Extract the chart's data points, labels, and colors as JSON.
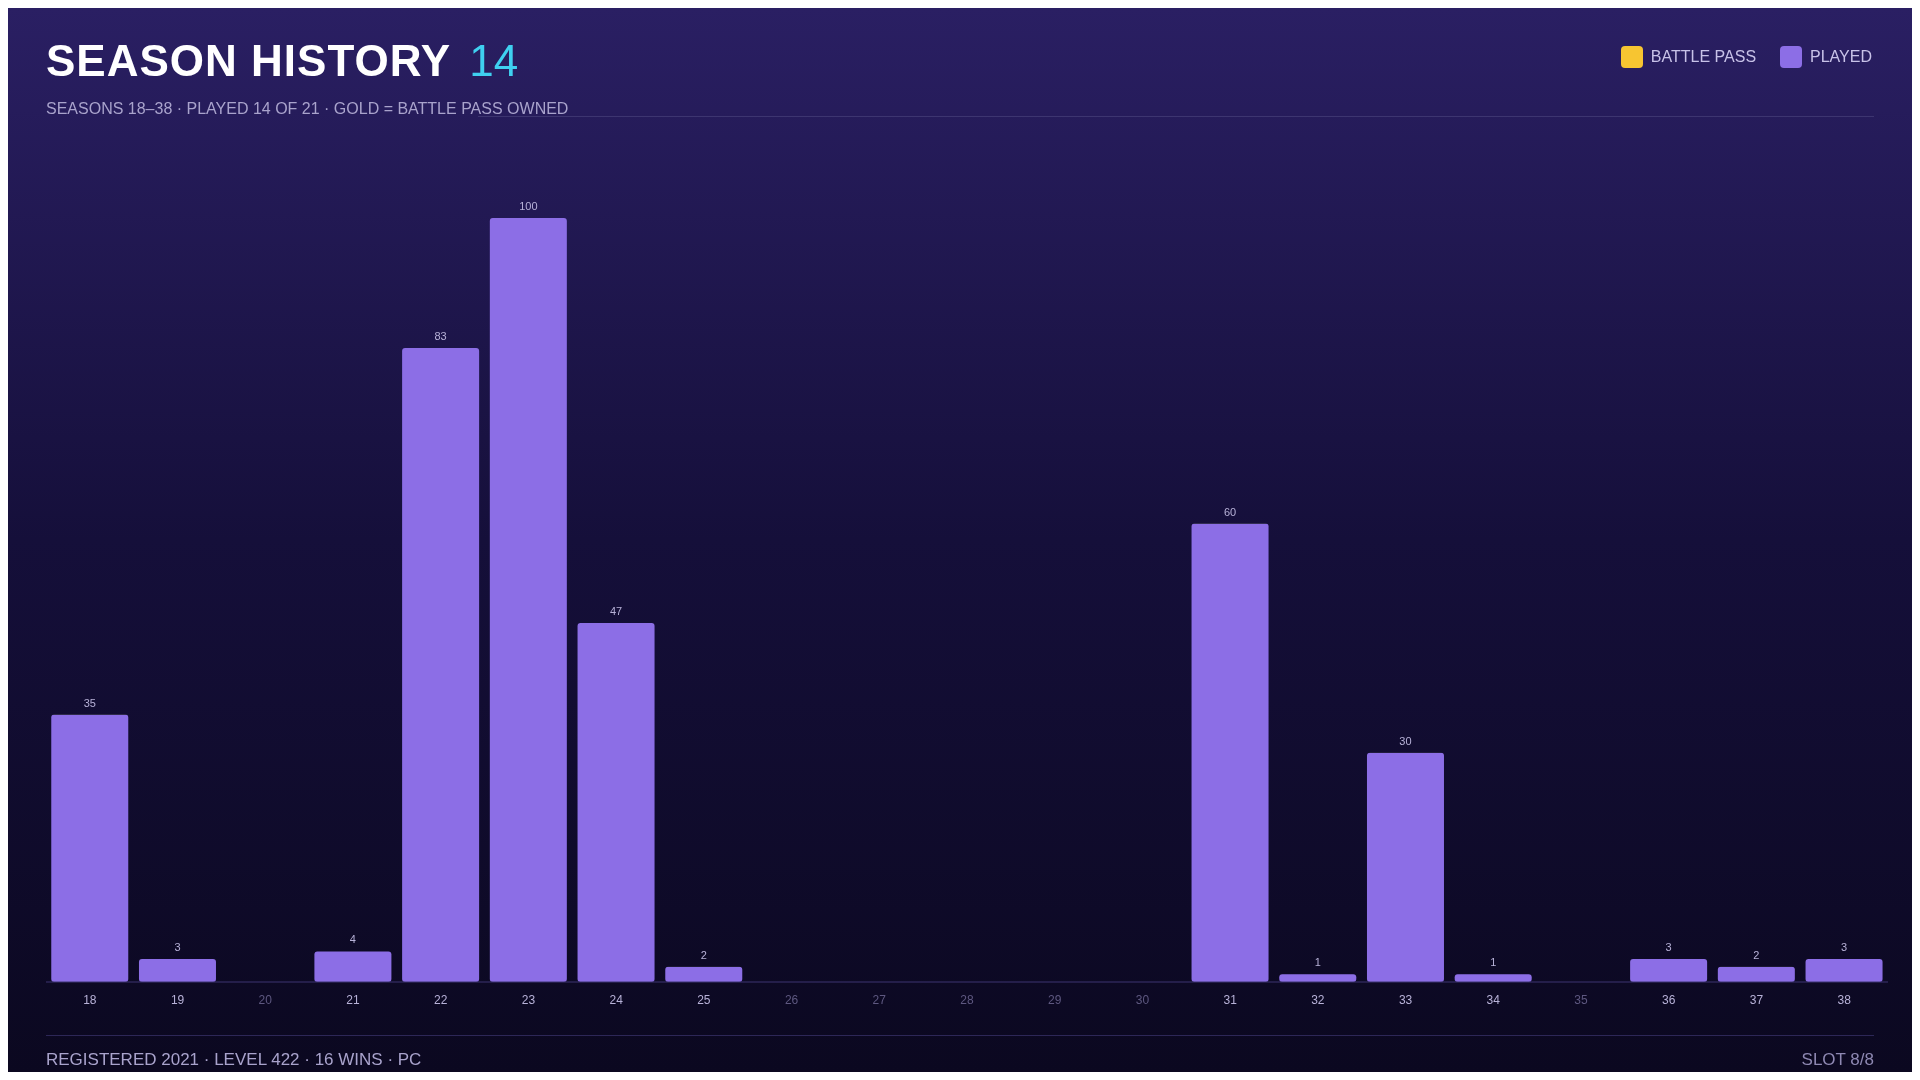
{
  "chart_data": {
    "type": "bar",
    "title": "SEASON HISTORY",
    "subtitle": "SEASONS 18–38 · PLAYED 14 OF 21 · GOLD = BATTLE PASS OWNED",
    "annotations": [
      "14",
      "REGISTERED 2021 · LEVEL 422 · 16 WINS · PC",
      "SLOT 8/8"
    ],
    "categories": [
      "18",
      "19",
      "20",
      "21",
      "22",
      "23",
      "24",
      "25",
      "26",
      "27",
      "28",
      "29",
      "30",
      "31",
      "32",
      "33",
      "34",
      "35",
      "36",
      "37",
      "38"
    ],
    "series": [
      {
        "name": "BATTLE PASS",
        "color": "#f7c531",
        "values": [
          null,
          null,
          null,
          null,
          null,
          null,
          null,
          null,
          null,
          null,
          null,
          null,
          null,
          null,
          null,
          null,
          null,
          null,
          null,
          null,
          null
        ]
      },
      {
        "name": "PLAYED",
        "color": "#8c6ee6",
        "values": [
          35,
          3,
          0,
          4,
          83,
          100,
          47,
          2,
          0,
          0,
          0,
          0,
          0,
          60,
          1,
          30,
          1,
          0,
          3,
          2,
          3
        ],
        "value_labels": [
          "35",
          "3",
          null,
          "4",
          "83",
          "100",
          "47",
          "2",
          null,
          null,
          null,
          null,
          null,
          "60",
          "1",
          "30",
          "1",
          null,
          "3",
          "2",
          "3"
        ]
      }
    ],
    "legend": "top right",
    "grid": false
  }
}
